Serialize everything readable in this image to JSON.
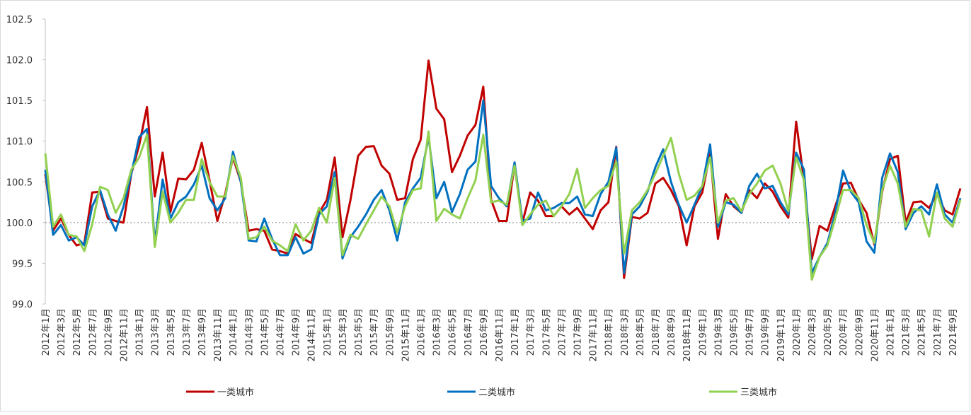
{
  "chart_data": {
    "type": "line",
    "categories": [
      "2012年1月",
      null,
      "2012年3月",
      null,
      "2012年5月",
      null,
      "2012年7月",
      null,
      "2012年9月",
      null,
      "2012年11月",
      null,
      "2013年1月",
      null,
      "2013年3月",
      null,
      "2013年5月",
      null,
      "2013年7月",
      null,
      "2013年9月",
      null,
      "2013年11月",
      null,
      "2014年1月",
      null,
      "2014年3月",
      null,
      "2014年5月",
      null,
      "2014年7月",
      null,
      "2014年9月",
      null,
      "2014年11月",
      null,
      "2015年1月",
      null,
      "2015年3月",
      null,
      "2015年5月",
      null,
      "2015年7月",
      null,
      "2015年9月",
      null,
      "2015年11月",
      null,
      "2016年1月",
      null,
      "2016年3月",
      null,
      "2016年5月",
      null,
      "2016年7月",
      null,
      "2016年9月",
      null,
      "2016年11月",
      null,
      "2017年1月",
      null,
      "2017年3月",
      null,
      "2017年5月",
      null,
      "2017年7月",
      null,
      "2017年9月",
      null,
      "2017年11月",
      null,
      "2018年1月",
      null,
      "2018年3月",
      null,
      "2018年5月",
      null,
      "2018年7月",
      null,
      "2018年9月",
      null,
      "2018年11月",
      null,
      "2019年1月",
      null,
      "2019年3月",
      null,
      "2019年5月",
      null,
      "2019年7月",
      null,
      "2019年9月",
      null,
      "2019年11月",
      null,
      "2020年1月",
      null,
      "2020年3月",
      null,
      "2020年5月",
      null,
      "2020年7月",
      null,
      "2020年9月",
      null,
      "2020年11月",
      null,
      "2021年1月",
      null,
      "2021年3月",
      null,
      "2021年5月",
      null,
      "2021年7月",
      null,
      "2021年9月",
      null
    ],
    "series": [
      {
        "name": "一类城市",
        "color": "#c00000",
        "values": [
          100.6,
          99.9,
          100.05,
          99.85,
          99.72,
          99.75,
          100.37,
          100.38,
          100.05,
          100.02,
          100.0,
          100.6,
          100.95,
          101.42,
          100.32,
          100.86,
          100.13,
          100.54,
          100.53,
          100.65,
          100.98,
          100.52,
          100.02,
          100.35,
          100.8,
          100.5,
          99.9,
          99.92,
          99.9,
          99.67,
          99.65,
          99.62,
          99.86,
          99.8,
          99.75,
          100.12,
          100.28,
          100.8,
          99.82,
          100.27,
          100.82,
          100.93,
          100.94,
          100.7,
          100.6,
          100.28,
          100.3,
          100.78,
          101.02,
          101.99,
          101.4,
          101.27,
          100.62,
          100.82,
          101.07,
          101.2,
          101.67,
          100.28,
          100.02,
          100.02,
          100.72,
          100.0,
          100.37,
          100.27,
          100.08,
          100.08,
          100.2,
          100.1,
          100.18,
          100.05,
          99.92,
          100.15,
          100.25,
          100.93,
          99.32,
          100.07,
          100.05,
          100.12,
          100.48,
          100.55,
          100.4,
          100.2,
          99.72,
          100.2,
          100.37,
          100.85,
          99.8,
          100.35,
          100.2,
          100.12,
          100.4,
          100.3,
          100.48,
          100.38,
          100.2,
          100.06,
          101.24,
          100.52,
          99.55,
          99.96,
          99.9,
          100.2,
          100.48,
          100.49,
          100.28,
          100.12,
          99.73,
          100.38,
          100.78,
          100.82,
          100.0,
          100.25,
          100.26,
          100.18,
          100.35,
          100.15,
          100.1,
          100.42
        ]
      },
      {
        "name": "二类城市",
        "color": "#0070c0",
        "values": [
          100.65,
          99.85,
          99.97,
          99.78,
          99.82,
          99.72,
          100.2,
          100.4,
          100.1,
          99.9,
          100.2,
          100.6,
          101.05,
          101.15,
          99.75,
          100.53,
          100.05,
          100.25,
          100.32,
          100.47,
          100.7,
          100.3,
          100.15,
          100.3,
          100.87,
          100.5,
          99.78,
          99.77,
          100.05,
          99.8,
          99.6,
          99.6,
          99.82,
          99.62,
          99.67,
          100.1,
          100.2,
          100.62,
          99.56,
          99.82,
          99.95,
          100.1,
          100.28,
          100.4,
          100.15,
          99.78,
          100.25,
          100.42,
          100.55,
          101.05,
          100.3,
          100.5,
          100.13,
          100.35,
          100.65,
          100.75,
          101.5,
          100.45,
          100.3,
          100.2,
          100.74,
          100.02,
          100.05,
          100.37,
          100.15,
          100.18,
          100.24,
          100.24,
          100.32,
          100.1,
          100.08,
          100.35,
          100.5,
          100.92,
          99.38,
          100.1,
          100.2,
          100.38,
          100.68,
          100.9,
          100.5,
          100.22,
          100.0,
          100.22,
          100.45,
          100.96,
          99.95,
          100.25,
          100.22,
          100.12,
          100.45,
          100.6,
          100.42,
          100.45,
          100.25,
          100.1,
          100.86,
          100.65,
          99.38,
          99.58,
          99.75,
          100.12,
          100.64,
          100.38,
          100.25,
          99.77,
          99.63,
          100.55,
          100.85,
          100.62,
          99.92,
          100.12,
          100.2,
          100.1,
          100.47,
          100.1,
          100.0,
          100.3
        ]
      },
      {
        "name": "三类城市",
        "color": "#92d050",
        "values": [
          100.85,
          99.95,
          100.1,
          99.85,
          99.83,
          99.65,
          99.98,
          100.44,
          100.4,
          100.12,
          100.3,
          100.65,
          100.8,
          101.08,
          99.7,
          100.38,
          100.0,
          100.12,
          100.28,
          100.28,
          100.78,
          100.5,
          100.32,
          100.32,
          100.82,
          100.55,
          99.8,
          99.82,
          99.95,
          99.78,
          99.72,
          99.65,
          99.98,
          99.78,
          99.9,
          100.18,
          100.0,
          100.55,
          99.6,
          99.85,
          99.8,
          99.98,
          100.15,
          100.32,
          100.2,
          99.88,
          100.2,
          100.4,
          100.42,
          101.12,
          100.02,
          100.17,
          100.1,
          100.05,
          100.3,
          100.52,
          101.08,
          100.25,
          100.27,
          100.22,
          100.7,
          99.97,
          100.1,
          100.22,
          100.27,
          100.08,
          100.2,
          100.35,
          100.66,
          100.18,
          100.3,
          100.4,
          100.45,
          100.75,
          99.62,
          100.15,
          100.25,
          100.4,
          100.6,
          100.82,
          101.04,
          100.6,
          100.28,
          100.33,
          100.45,
          100.8,
          100.0,
          100.27,
          100.3,
          100.14,
          100.35,
          100.48,
          100.64,
          100.7,
          100.48,
          100.14,
          100.8,
          100.52,
          99.3,
          99.58,
          99.72,
          100.05,
          100.4,
          100.4,
          100.3,
          99.97,
          99.75,
          100.4,
          100.7,
          100.48,
          99.95,
          100.17,
          100.15,
          99.83,
          100.37,
          100.05,
          99.95,
          100.28
        ]
      }
    ],
    "ylim": [
      99.0,
      102.5
    ],
    "yticks": [
      {
        "value": 99.0,
        "label": "99.0"
      },
      {
        "value": 99.5,
        "label": "99.5"
      },
      {
        "value": 100.0,
        "label": "100.0"
      },
      {
        "value": 100.5,
        "label": "100.5"
      },
      {
        "value": 101.0,
        "label": "101.0"
      },
      {
        "value": 101.5,
        "label": "101.5"
      },
      {
        "value": 102.0,
        "label": "102.0"
      },
      {
        "value": 102.5,
        "label": "102.5"
      }
    ],
    "baseline": 100,
    "legend": "bottom"
  }
}
